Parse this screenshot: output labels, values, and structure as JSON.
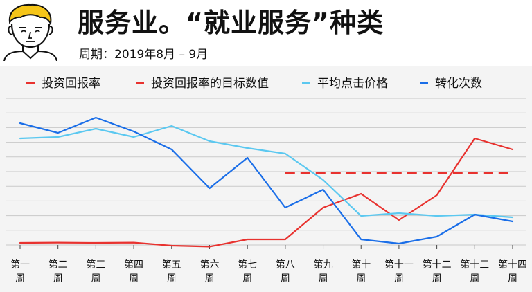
{
  "header": {
    "title": "服务业。“就业服务”种类",
    "period": "周期：2019年8月 – 9月"
  },
  "chart_data": {
    "type": "line",
    "categories": [
      [
        "第一",
        "周"
      ],
      [
        "第二",
        "周"
      ],
      [
        "第三",
        "周"
      ],
      [
        "第四",
        "周"
      ],
      [
        "第五",
        "周"
      ],
      [
        "第六",
        "周"
      ],
      [
        "第七",
        "周"
      ],
      [
        "第八",
        "周"
      ],
      [
        "第九",
        "周"
      ],
      [
        "第十",
        "周"
      ],
      [
        "第十一",
        "周"
      ],
      [
        "第十二",
        "周"
      ],
      [
        "第十三",
        "周"
      ],
      [
        "第十四",
        "周"
      ]
    ],
    "ylim": [
      0,
      10
    ],
    "grid": true,
    "legend_position": "top",
    "series": [
      {
        "name": "投资回报率",
        "color": "#e8322f",
        "dash": "solid",
        "values": [
          0.05,
          0.07,
          0.05,
          0.07,
          -0.15,
          -0.22,
          0.3,
          0.3,
          2.6,
          3.6,
          1.7,
          3.5,
          7.6,
          6.8
        ]
      },
      {
        "name": "投资回报率的目标数值",
        "color": "#e8322f",
        "dash": "dashed",
        "values": [
          null,
          null,
          null,
          null,
          null,
          null,
          null,
          5.1,
          5.1,
          5.1,
          5.1,
          5.1,
          5.1,
          5.1
        ]
      },
      {
        "name": "平均点击价格",
        "color": "#5bc8f0",
        "dash": "solid",
        "values": [
          7.6,
          7.7,
          8.3,
          7.7,
          8.5,
          7.4,
          6.9,
          6.5,
          4.6,
          2.0,
          2.2,
          2.0,
          2.1,
          1.9
        ]
      },
      {
        "name": "转化次数",
        "color": "#1a6ee8",
        "dash": "solid",
        "values": [
          8.7,
          8.0,
          9.1,
          8.1,
          6.8,
          4.0,
          6.2,
          2.6,
          3.9,
          0.3,
          0.0,
          0.5,
          2.1,
          1.6
        ]
      }
    ]
  }
}
